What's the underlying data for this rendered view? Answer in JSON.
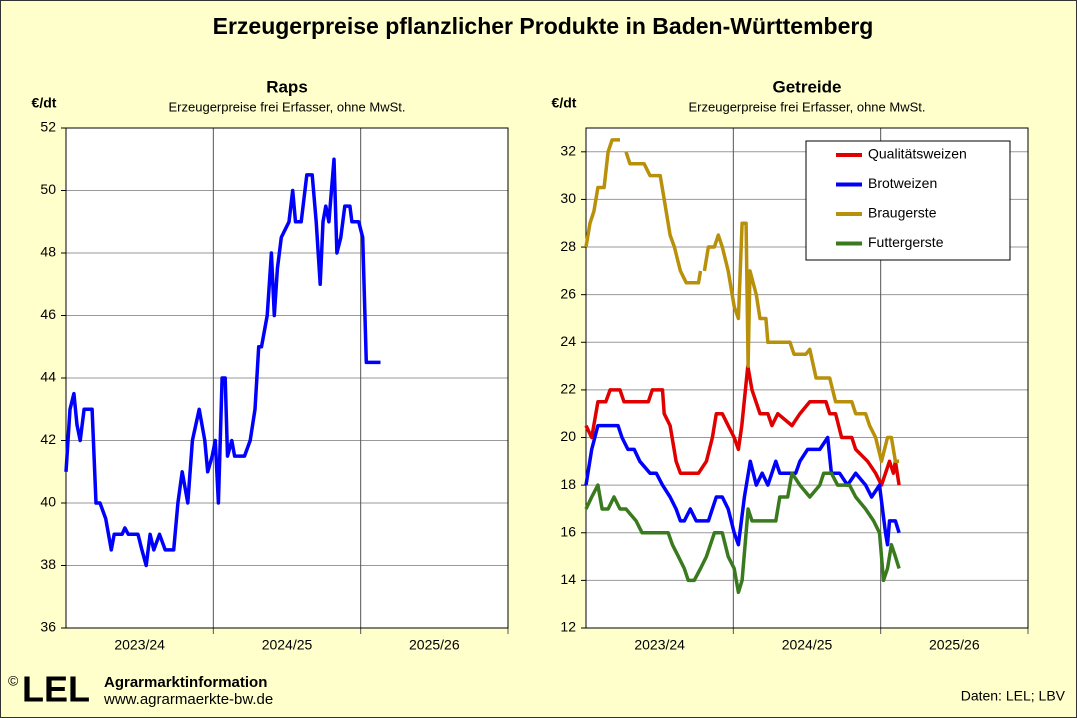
{
  "title": "Erzeugerpreise pflanzlicher Produkte in Baden-Württemberg",
  "footer": {
    "copyright": "©",
    "logo": "LEL",
    "org": "Agrarmarktinformation",
    "url": "www.agrarmaerkte-bw.de",
    "source": "Daten: LEL; LBV"
  },
  "chart_data": [
    {
      "type": "line",
      "title": "Raps",
      "subtitle": "Erzeugerpreise frei Erfasser, ohne MwSt.",
      "y_label": "€/dt",
      "ylim": [
        36,
        52
      ],
      "yticks": [
        36,
        38,
        40,
        42,
        44,
        46,
        48,
        50,
        52
      ],
      "grid": true,
      "xlim": [
        0,
        156
      ],
      "x_bands": [
        {
          "label": "2023/24",
          "start": 0,
          "end": 52
        },
        {
          "label": "2024/25",
          "start": 52,
          "end": 104
        },
        {
          "label": "2025/26",
          "start": 104,
          "end": 156
        }
      ],
      "series": [
        {
          "color": "#0000ff",
          "x": [
            0,
            1.4,
            2.8,
            3.9,
            5,
            6.4,
            9.2,
            10.6,
            12,
            14,
            16,
            17,
            19.8,
            20.8,
            22,
            25.4,
            26.8,
            28.3,
            29.7,
            31,
            33,
            35,
            38,
            39.5,
            41,
            43,
            44.6,
            47,
            49,
            50,
            51.6,
            52.7,
            53.8,
            55.1,
            56.2,
            57,
            58.5,
            59.5,
            63,
            65,
            66.7,
            68,
            69,
            71,
            72.5,
            73.5,
            74.6,
            76,
            78.7,
            80,
            81,
            83,
            85,
            86.9,
            88.3,
            89.7,
            90.7,
            91.7,
            92.8,
            94.6,
            95.6,
            97,
            98.4,
            100.2,
            100.9,
            103.3,
            104.7,
            106,
            107.5,
            111
          ],
          "values": [
            41,
            43,
            43.5,
            42.5,
            42,
            43,
            43,
            40,
            40,
            39.5,
            38.5,
            39,
            39,
            39.2,
            39,
            39,
            38.5,
            38,
            39,
            38.5,
            39,
            38.5,
            38.5,
            40,
            41,
            40,
            42,
            43,
            42,
            41,
            41.5,
            42,
            40,
            44,
            44,
            41.5,
            42,
            41.5,
            41.5,
            42,
            43,
            45,
            45,
            46,
            48,
            46,
            47.5,
            48.5,
            49,
            50,
            49,
            49,
            50.5,
            50.5,
            49,
            47,
            49,
            49.5,
            49,
            51,
            48,
            48.5,
            49.5,
            49.5,
            49,
            49,
            48.5,
            44.5,
            44.5,
            44.5
          ]
        }
      ]
    },
    {
      "type": "line",
      "title": "Getreide",
      "subtitle": "Erzeugerpreise frei Erfasser, ohne MwSt.",
      "y_label": "€/dt",
      "ylim": [
        12,
        33
      ],
      "yticks": [
        12,
        14,
        16,
        18,
        20,
        22,
        24,
        26,
        28,
        30,
        32
      ],
      "grid": true,
      "xlim": [
        0,
        156
      ],
      "legend": "upper right",
      "x_bands": [
        {
          "label": "2023/24",
          "start": 0,
          "end": 52
        },
        {
          "label": "2024/25",
          "start": 52,
          "end": 104
        },
        {
          "label": "2025/26",
          "start": 104,
          "end": 156
        }
      ],
      "series": [
        {
          "name": "Qualitätsweizen",
          "color": "#e00000",
          "x": [
            0,
            2,
            4.2,
            7,
            8.5,
            12,
            13.4,
            22,
            23.4,
            27,
            27.6,
            29.7,
            31.8,
            33.3,
            37.6,
            39.7,
            42.5,
            44.6,
            46,
            48.1,
            50.2,
            52.3,
            53.8,
            55,
            57.1,
            58.6,
            61.4,
            64.2,
            65.6,
            67.7,
            72.7,
            75.5,
            79,
            83.3,
            84.7,
            86,
            88.1,
            90.2,
            93.8,
            95.2,
            99.4,
            102.2,
            104.3,
            105.7,
            107.1,
            108.5,
            109.2,
            110.5
          ],
          "values": [
            20.5,
            20,
            21.5,
            21.5,
            22,
            22,
            21.5,
            21.5,
            22,
            22,
            21,
            20.5,
            19,
            18.5,
            18.5,
            18.5,
            19,
            20,
            21,
            21,
            20.5,
            20,
            19.5,
            20.5,
            23,
            22,
            21,
            21,
            20.5,
            21,
            20.5,
            21,
            21.5,
            21.5,
            21.5,
            21,
            21,
            20,
            20,
            19.5,
            19,
            18.5,
            18,
            18.5,
            19,
            18.5,
            19,
            18
          ]
        },
        {
          "name": "Brotweizen",
          "color": "#0000ff",
          "x": [
            0,
            2,
            4.2,
            11.3,
            12.7,
            14.8,
            17,
            19,
            22.6,
            24.8,
            27,
            29.7,
            31.8,
            33.3,
            34.7,
            36.8,
            38.9,
            43.2,
            46,
            48.1,
            50.2,
            52.3,
            53.8,
            55.9,
            58,
            60.1,
            62.2,
            64.2,
            67,
            68.4,
            69.8,
            74,
            75.5,
            78.2,
            82.5,
            85.3,
            86.6,
            89.5,
            92.3,
            95.2,
            98.7,
            100.8,
            103.6,
            105.7,
            106.4,
            107.1,
            109.2,
            110.5
          ],
          "values": [
            18,
            19.5,
            20.5,
            20.5,
            20,
            19.5,
            19.5,
            19,
            18.5,
            18.5,
            18,
            17.5,
            17,
            16.5,
            16.5,
            17,
            16.5,
            16.5,
            17.5,
            17.5,
            17,
            16,
            15.5,
            17.5,
            19,
            18,
            18.5,
            18,
            19,
            18.5,
            18.5,
            18.5,
            19,
            19.5,
            19.5,
            20,
            18.5,
            18.5,
            18,
            18.5,
            18,
            17.5,
            18,
            16,
            15.5,
            16.5,
            16.5,
            16
          ]
        },
        {
          "name": "Braugerste",
          "color": "#b8900a",
          "x": [
            0,
            1.4,
            2.8,
            4.2,
            6.4,
            7.8,
            9.2,
            12,
            null,
            14.1,
            15.5,
            20.5,
            22.6,
            26.2,
            27.6,
            29.7,
            31.2,
            33.3,
            35.4,
            39.7,
            40.4,
            null,
            41.8,
            43.2,
            45.3,
            46.7,
            48.1,
            50.2,
            52.3,
            53.8,
            55.1,
            56.5,
            57.2,
            57.9,
            60.1,
            61.4,
            63.5,
            64.2,
            72,
            73.4,
            75.5,
            77.6,
            79,
            81.2,
            86,
            88.1,
            93.8,
            95.2,
            98.7,
            100.1,
            102.2,
            104.3,
            106.4,
            107.8,
            109.2,
            110.5
          ],
          "values": [
            28,
            29,
            29.5,
            30.5,
            30.5,
            32,
            32.5,
            32.5,
            null,
            32,
            31.5,
            31.5,
            31,
            31,
            30,
            28.5,
            28,
            27,
            26.5,
            26.5,
            27,
            null,
            27,
            28,
            28,
            28.5,
            28,
            27,
            25.5,
            25,
            29,
            29,
            23,
            27,
            26,
            25,
            25,
            24,
            24,
            23.5,
            23.5,
            23.5,
            23.7,
            22.5,
            22.5,
            21.5,
            21.5,
            21,
            21,
            20.5,
            20,
            19,
            20,
            20,
            19,
            19
          ]
        },
        {
          "name": "Futtergerste",
          "color": "#3a7a1e",
          "x": [
            0,
            2,
            4.2,
            5.7,
            7.8,
            9.9,
            12,
            14.1,
            17.7,
            19.8,
            27,
            29,
            30.5,
            32.6,
            34.7,
            36.1,
            38.2,
            40.4,
            42.5,
            45.3,
            48.1,
            50.2,
            52.3,
            53.8,
            55.1,
            57.2,
            58.6,
            62.2,
            67,
            68.4,
            71.2,
            72.7,
            75.5,
            79,
            82.5,
            83.9,
            86.6,
            88.8,
            93,
            95.2,
            98.7,
            101.5,
            103.6,
            105,
            106.4,
            107.8,
            109.2,
            110.5
          ],
          "values": [
            17,
            17.5,
            18,
            17,
            17,
            17.5,
            17,
            17,
            16.5,
            16,
            16,
            16,
            15.5,
            15,
            14.5,
            14,
            14,
            14.5,
            15,
            16,
            16,
            15,
            14.5,
            13.5,
            14,
            17,
            16.5,
            16.5,
            16.5,
            17.5,
            17.5,
            18.5,
            18,
            17.5,
            18,
            18.5,
            18.5,
            18,
            18,
            17.5,
            17,
            16.5,
            16,
            14,
            14.5,
            15.5,
            15,
            14.5
          ]
        }
      ]
    }
  ]
}
